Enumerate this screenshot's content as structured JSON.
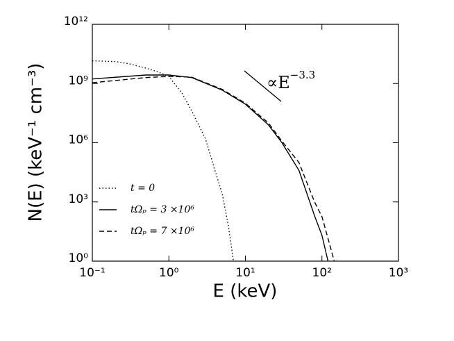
{
  "chart_data": {
    "type": "line",
    "xlabel": "E (keV)",
    "ylabel": "N(E) (keV⁻¹ cm⁻³)",
    "xscale": "log",
    "yscale": "log",
    "xlim": [
      0.1,
      1000
    ],
    "ylim": [
      1,
      1000000000000
    ],
    "xticks": [
      {
        "value": 0.1,
        "label": "10⁻¹"
      },
      {
        "value": 1,
        "label": "10⁰"
      },
      {
        "value": 10,
        "label": "10¹"
      },
      {
        "value": 100,
        "label": "10²"
      },
      {
        "value": 1000,
        "label": "10³"
      }
    ],
    "yticks": [
      {
        "value": 1,
        "label": "10⁰"
      },
      {
        "value": 1000,
        "label": "10³"
      },
      {
        "value": 1000000,
        "label": "10⁶"
      },
      {
        "value": 1000000000,
        "label": "10⁹"
      },
      {
        "value": 1000000000000,
        "label": "10¹²"
      }
    ],
    "legend": "lower left",
    "annotation": {
      "base": "∝E",
      "exponent": "−3.3"
    },
    "series": [
      {
        "name": "t = 0",
        "color": "#000000",
        "dash": "dotted",
        "x": [
          0.1,
          0.2,
          0.3,
          0.5,
          0.7,
          1,
          1.5,
          2,
          3,
          4,
          5,
          6,
          7
        ],
        "values": [
          14000000000,
          13000000000,
          10000000000,
          6000000000,
          4000000000,
          2300000000,
          300000000,
          40000000,
          1600000,
          40000,
          2400,
          60,
          1
        ]
      },
      {
        "name": "tΩₚ = 3 ×10⁶",
        "color": "#000000",
        "dash": "solid",
        "x": [
          0.1,
          0.5,
          1,
          2,
          5,
          10,
          20,
          30,
          50,
          80,
          100,
          120
        ],
        "values": [
          1700000000,
          2700000000,
          2700000000,
          2000000000,
          460000000,
          90000000,
          8000000,
          1000000,
          40000,
          200,
          20,
          1
        ]
      },
      {
        "name": "tΩₚ = 7 ×10⁶",
        "color": "#000000",
        "dash": "dashed",
        "x": [
          0.1,
          0.5,
          1,
          2,
          5,
          10,
          20,
          30,
          50,
          80,
          100,
          145
        ],
        "values": [
          1100000000,
          2000000000,
          2300000000,
          2100000000,
          500000000,
          100000000,
          10000000,
          1200000,
          100000,
          1000,
          180,
          1
        ]
      }
    ]
  }
}
